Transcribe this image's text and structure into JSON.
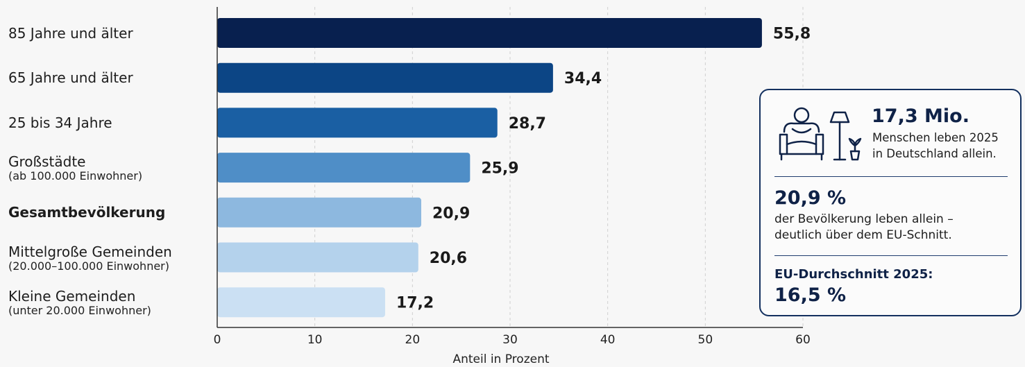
{
  "chart_data": {
    "type": "bar",
    "orientation": "horizontal",
    "categories": [
      "85 Jahre und älter",
      "65 Jahre und älter",
      "25 bis 34 Jahre",
      "Großstädte",
      "Gesamtbevölkerung",
      "Mittelgroße Gemeinden",
      "Kleine Gemeinden"
    ],
    "category_sublabels": [
      "",
      "",
      "",
      "(ab 100.000 Einwohner)",
      "",
      "(20.000–100.000 Einwohner)",
      "(unter 20.000 Einwohner)"
    ],
    "values": [
      55.8,
      34.4,
      28.7,
      25.9,
      20.9,
      20.6,
      17.2
    ],
    "value_labels": [
      "55,8",
      "34,4",
      "28,7",
      "25,9",
      "20,9",
      "20,6",
      "17,2"
    ],
    "bar_colors": [
      "#08204f",
      "#0c4585",
      "#1a5fa3",
      "#4f8ec7",
      "#8db8df",
      "#b4d2ec",
      "#cbe0f3"
    ],
    "highlight_category": "Gesamtbevölkerung",
    "xlabel": "Anteil in Prozent",
    "xlim": [
      0,
      60
    ],
    "xticks": [
      0,
      10,
      20,
      30,
      40,
      50,
      60
    ],
    "grid": true
  },
  "info_box": {
    "stat1_value": "17,3 Mio.",
    "stat1_line1": "Menschen leben 2025",
    "stat1_line2": "in Deutschland allein.",
    "stat1_icon": "person-in-armchair-with-lamp-icon",
    "stat2_value": "20,9 %",
    "stat2_line1": "der Bevölkerung leben allein –",
    "stat2_line2": "deutlich über dem EU-Schnitt.",
    "stat3_label": "EU-Durchschnitt 2025:",
    "stat3_value": "16,5 %"
  }
}
